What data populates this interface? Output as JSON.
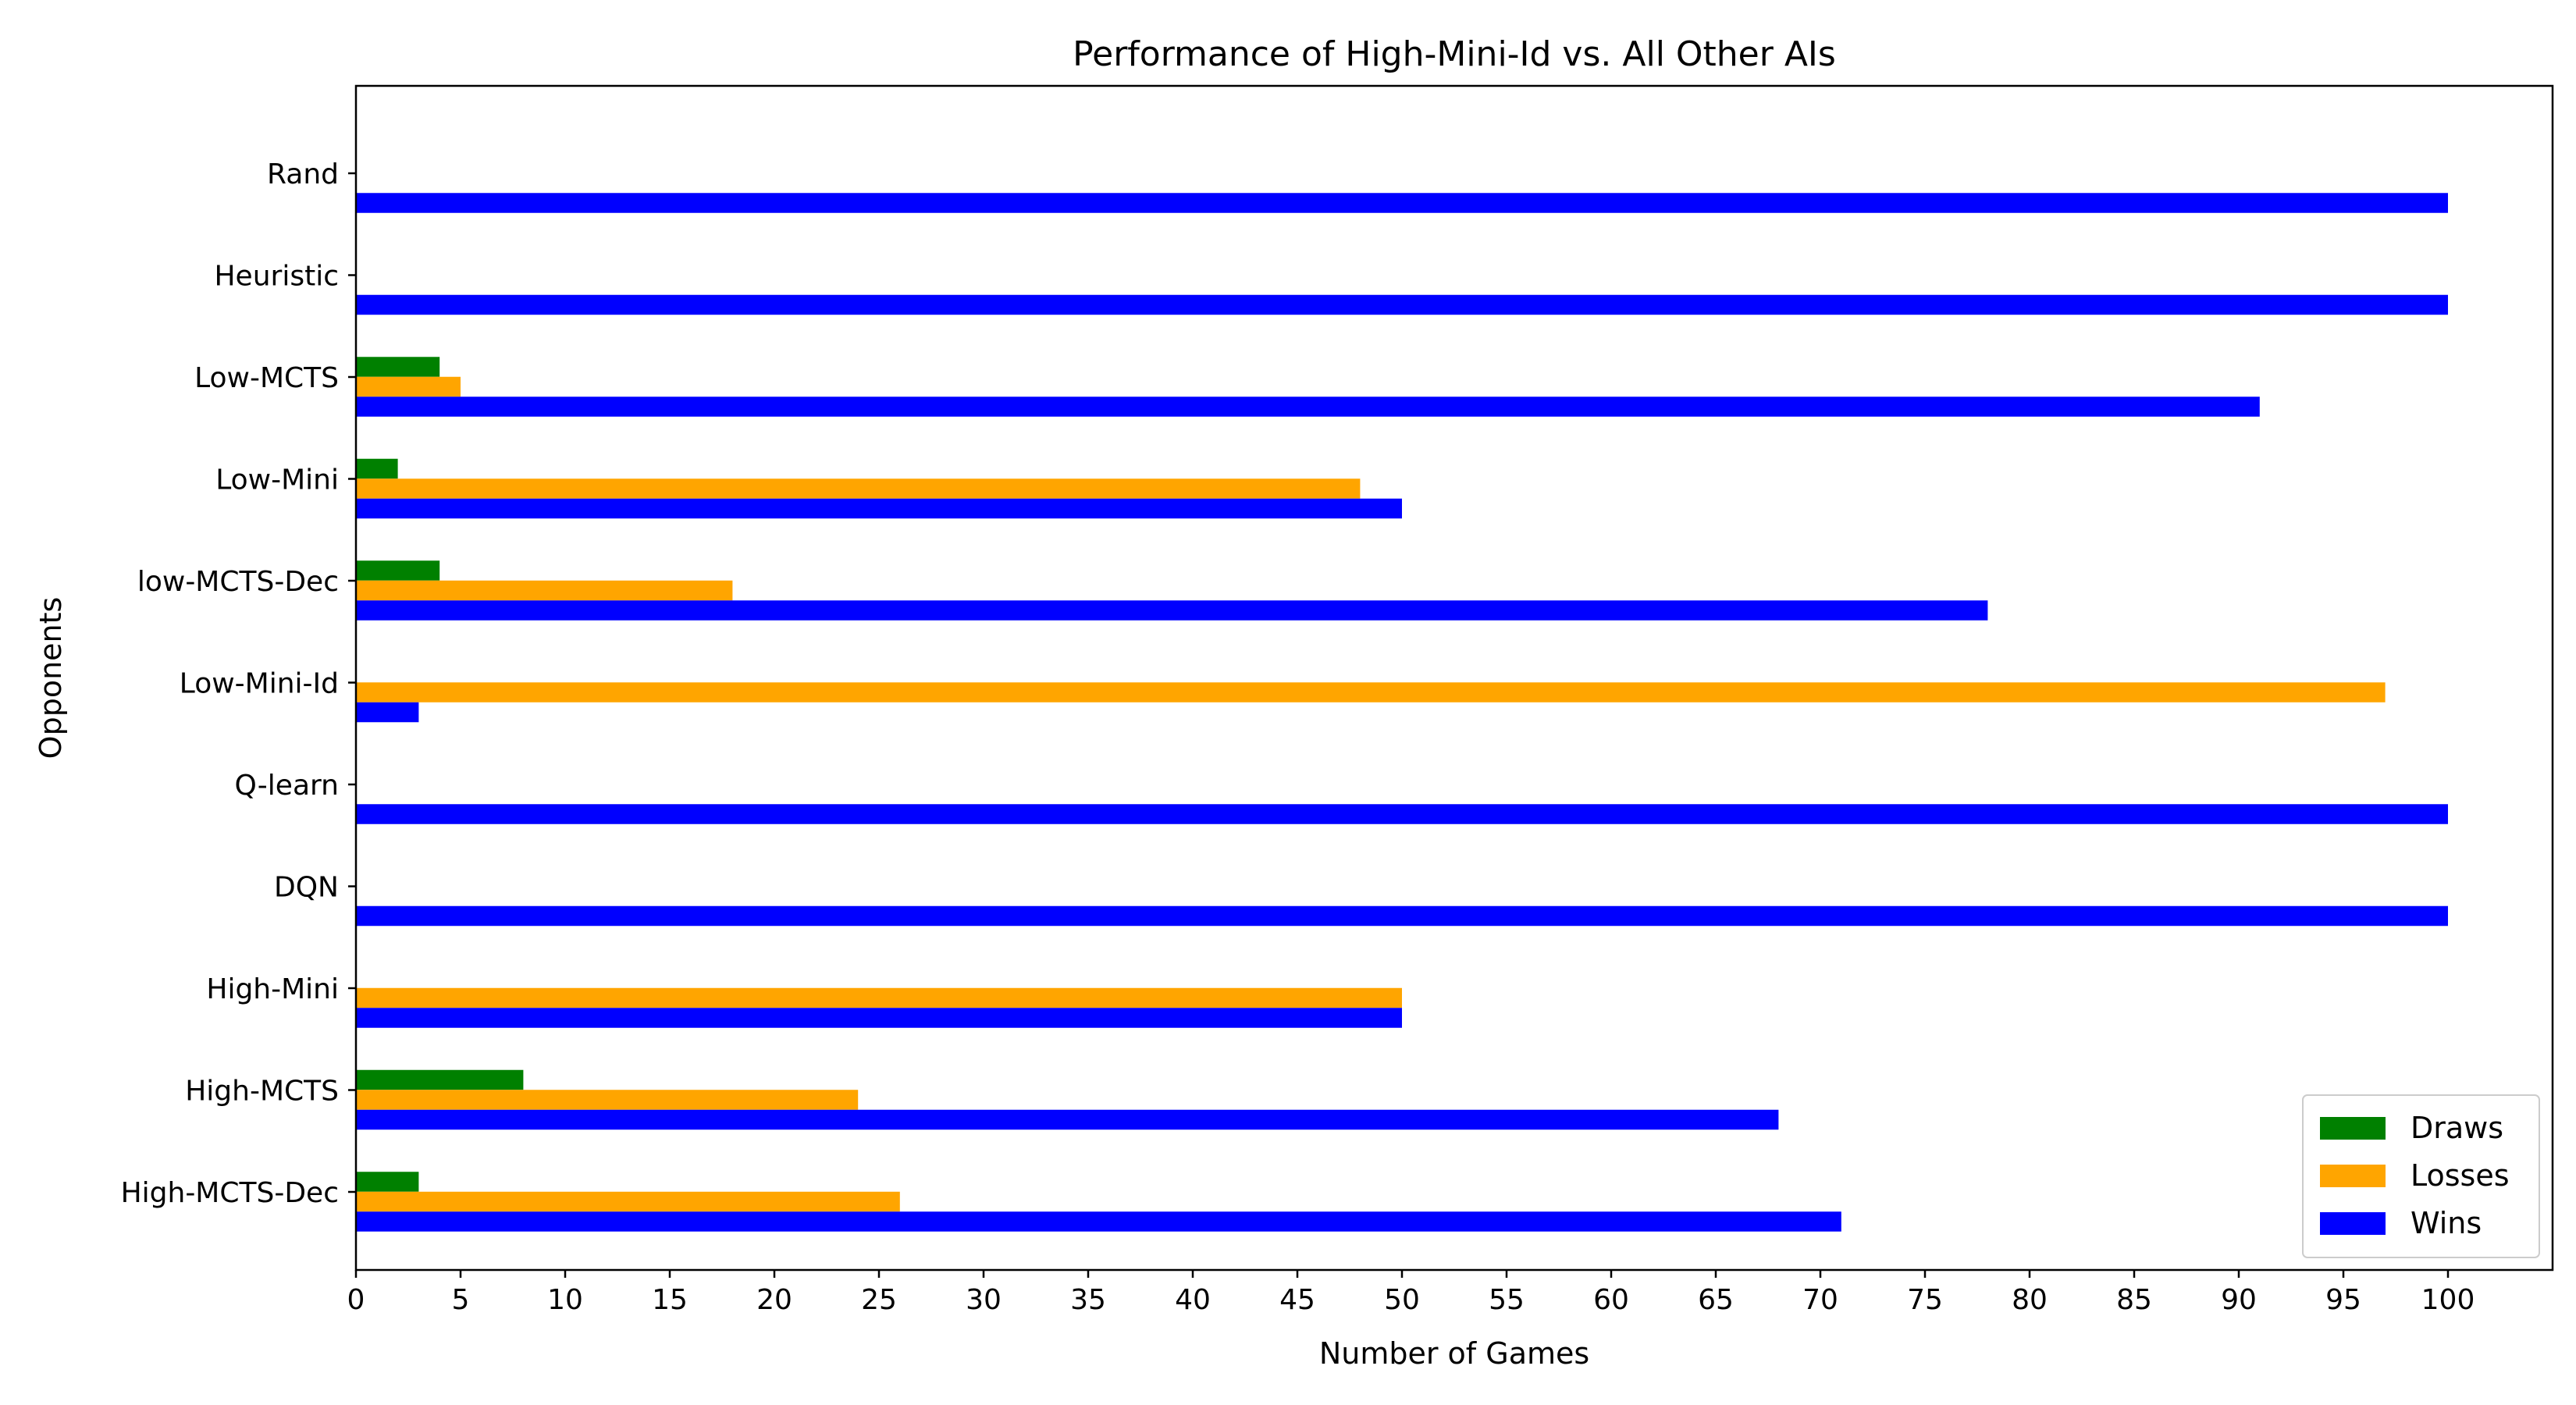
{
  "chart_data": {
    "type": "bar",
    "orientation": "horizontal",
    "title": "Performance of High-Mini-Id vs. All Other AIs",
    "xlabel": "Number of Games",
    "ylabel": "Opponents",
    "xlim": [
      0,
      105
    ],
    "xticks": [
      0,
      5,
      10,
      15,
      20,
      25,
      30,
      35,
      40,
      45,
      50,
      55,
      60,
      65,
      70,
      75,
      80,
      85,
      90,
      95,
      100
    ],
    "categories": [
      "Rand",
      "Heuristic",
      "Low-MCTS",
      "Low-Mini",
      "low-MCTS-Dec",
      "Low-Mini-Id",
      "Q-learn",
      "DQN",
      "High-Mini",
      "High-MCTS",
      "High-MCTS-Dec"
    ],
    "series": [
      {
        "name": "Draws",
        "color": "#008000",
        "values": [
          0,
          0,
          4,
          2,
          4,
          0,
          0,
          0,
          0,
          8,
          3
        ]
      },
      {
        "name": "Losses",
        "color": "#FFA500",
        "values": [
          0,
          0,
          5,
          48,
          18,
          97,
          0,
          0,
          50,
          24,
          26
        ]
      },
      {
        "name": "Wins",
        "color": "#0000FF",
        "values": [
          100,
          100,
          91,
          50,
          78,
          3,
          100,
          100,
          50,
          68,
          71
        ]
      }
    ],
    "legend_position": "lower-right",
    "grid": false
  }
}
